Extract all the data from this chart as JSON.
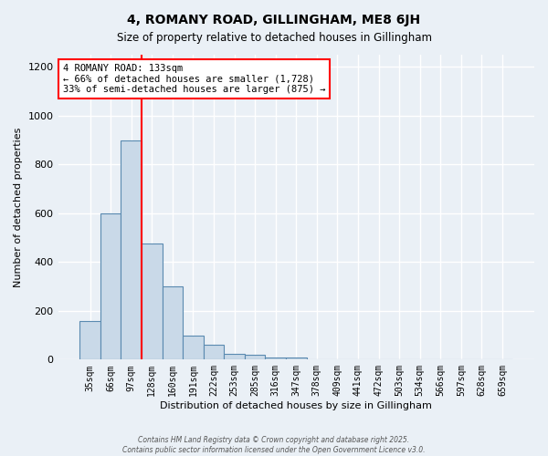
{
  "title": "4, ROMANY ROAD, GILLINGHAM, ME8 6JH",
  "subtitle": "Size of property relative to detached houses in Gillingham",
  "xlabel": "Distribution of detached houses by size in Gillingham",
  "ylabel": "Number of detached properties",
  "bar_labels": [
    "35sqm",
    "66sqm",
    "97sqm",
    "128sqm",
    "160sqm",
    "191sqm",
    "222sqm",
    "253sqm",
    "285sqm",
    "316sqm",
    "347sqm",
    "378sqm",
    "409sqm",
    "441sqm",
    "472sqm",
    "503sqm",
    "534sqm",
    "566sqm",
    "597sqm",
    "628sqm",
    "659sqm"
  ],
  "bar_values": [
    160,
    600,
    900,
    475,
    300,
    100,
    60,
    25,
    20,
    10,
    8,
    0,
    0,
    0,
    0,
    0,
    0,
    0,
    0,
    0,
    0
  ],
  "bar_color": "#c9d9e8",
  "bar_edgecolor": "#5a8ab0",
  "bg_color": "#eaf0f6",
  "grid_color": "#ffffff",
  "vline_color": "red",
  "vline_pos": 3.5,
  "annotation_text": "4 ROMANY ROAD: 133sqm\n← 66% of detached houses are smaller (1,728)\n33% of semi-detached houses are larger (875) →",
  "annotation_box_color": "white",
  "annotation_box_edgecolor": "red",
  "ylim": [
    0,
    1250
  ],
  "yticks": [
    0,
    200,
    400,
    600,
    800,
    1000,
    1200
  ],
  "footer1": "Contains HM Land Registry data © Crown copyright and database right 2025.",
  "footer2": "Contains public sector information licensed under the Open Government Licence v3.0."
}
